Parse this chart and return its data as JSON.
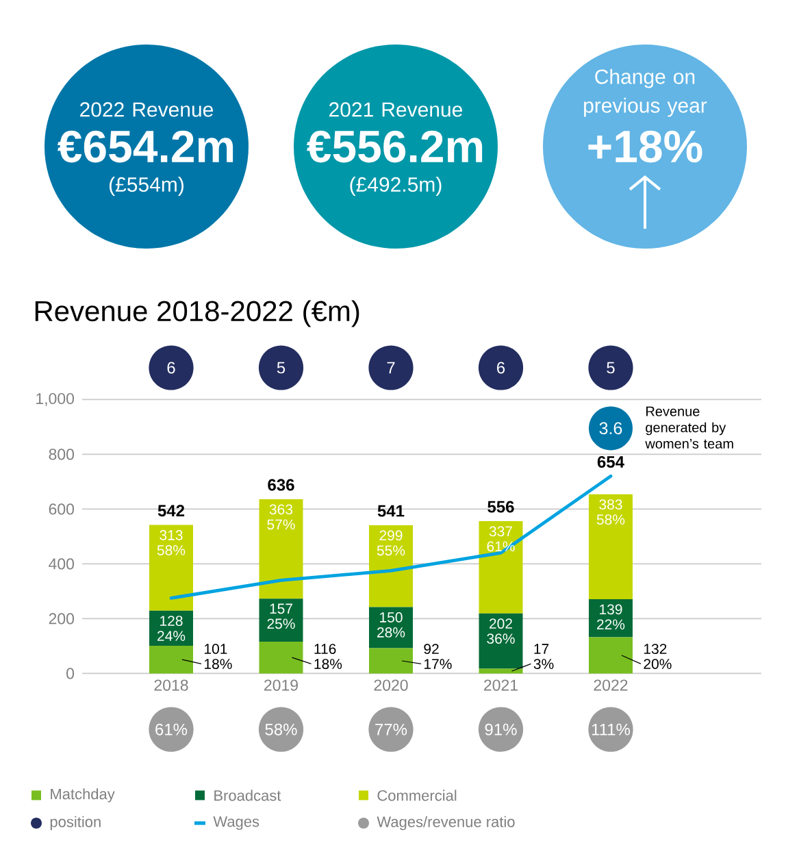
{
  "chart_data": [
    {
      "type": "other",
      "categories": [
        "2022 Revenue",
        "2021 Revenue",
        "Change on previous year"
      ],
      "value_labels": [
        "€654.2m",
        "€556.2m",
        "+18%"
      ],
      "annotations": [
        "(£554m)",
        "(£492.5m)"
      ],
      "colors": [
        "#0076a8",
        "#0097a9",
        "#62b5e5"
      ]
    },
    {
      "type": "bar",
      "title": "Revenue 2018-2022 (€m)",
      "categories": [
        "2018",
        "2019",
        "2020",
        "2021",
        "2022"
      ],
      "stacked": true,
      "series": [
        {
          "name": "Matchday",
          "color": "#78be20",
          "values": [
            101,
            116,
            92,
            17,
            132
          ],
          "value_labels": [
            "101 18%",
            "116 18%",
            "92 17%",
            "17 3%",
            "132 20%"
          ]
        },
        {
          "name": "Broadcast",
          "color": "#046a38",
          "values": [
            128,
            157,
            150,
            202,
            139
          ],
          "value_labels": [
            "128 24%",
            "157 25%",
            "150 28%",
            "202 36%",
            "139 22%"
          ]
        },
        {
          "name": "Commercial",
          "color": "#c4d600",
          "values": [
            313,
            363,
            299,
            337,
            383
          ],
          "value_labels": [
            "313 58%",
            "363 57%",
            "299 55%",
            "337 61%",
            "383 58%"
          ]
        },
        {
          "name": "Wages",
          "type": "line",
          "color": "#00a3e0",
          "values": [
            275,
            340,
            375,
            440,
            720
          ]
        }
      ],
      "totals": [
        "542",
        "636",
        "541",
        "556",
        "654"
      ],
      "ylim": [
        0,
        1000
      ],
      "yticks": [
        0,
        200,
        400,
        600,
        800,
        {
          "value": 1000,
          "label": "1,000"
        }
      ],
      "grid": "y",
      "legend": "bottom",
      "annotations": [
        "3.6",
        "Revenue generated by women’s team"
      ]
    },
    {
      "type": "other",
      "title": "position",
      "value_labels": [
        "6",
        "5",
        "7",
        "6",
        "5"
      ],
      "colors": [
        "#232d5f",
        "#232d5f",
        "#232d5f",
        "#232d5f",
        "#232d5f"
      ]
    },
    {
      "type": "other",
      "title": "Wages/revenue ratio",
      "value_labels": [
        "61%",
        "58%",
        "77%",
        "91%",
        "111%"
      ],
      "colors": [
        "#9b9b9b",
        "#9b9b9b",
        "#9b9b9b",
        "#9b9b9b",
        "#9b9b9b"
      ]
    }
  ]
}
